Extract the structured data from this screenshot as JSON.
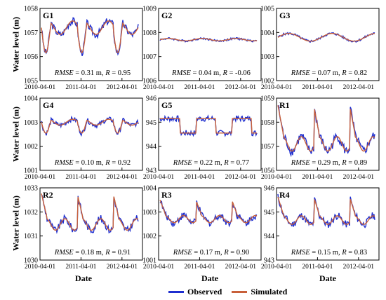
{
  "axis_titles": {
    "y": "Water level (m)",
    "x": "Date"
  },
  "colors": {
    "observed": "#1f2fcf",
    "simulated": "#c8603a",
    "deviation": "#ee4a4a"
  },
  "chart_data": {
    "type": "line",
    "x_tick_labels": [
      "2010-04-01",
      "2011-04-01",
      "2012-04-01"
    ],
    "x_range": [
      "2010-04-01",
      "2012-12-01"
    ],
    "legend": {
      "entries": [
        "Observed",
        "Simulated"
      ],
      "position": "bottom-center"
    },
    "panels": [
      {
        "id": "G1",
        "ylim": [
          1055,
          1058
        ],
        "yticks": [
          "1055",
          "1056",
          "1057",
          "1058"
        ],
        "metrics": {
          "rmse": "0.31 m",
          "r": "0.95"
        },
        "level_mean": 1057.2,
        "amplitude": 0.8,
        "pattern": "seasonal_drop",
        "noise": 0.15
      },
      {
        "id": "G2",
        "ylim": [
          1006,
          1009
        ],
        "yticks": [
          "1006",
          "1007",
          "1008",
          "1009"
        ],
        "metrics": {
          "rmse": "0.04 m",
          "r": "-0.06"
        },
        "level_mean": 1007.7,
        "amplitude": 0.05,
        "pattern": "flat",
        "noise": 0.04
      },
      {
        "id": "G3",
        "ylim": [
          1002,
          1005
        ],
        "yticks": [
          "1002",
          "1003",
          "1004",
          "1005"
        ],
        "metrics": {
          "rmse": "0.07 m",
          "r": "0.82"
        },
        "level_mean": 1003.8,
        "amplitude": 0.2,
        "pattern": "smooth",
        "noise": 0.05
      },
      {
        "id": "G4",
        "ylim": [
          1001,
          1004
        ],
        "yticks": [
          "1001",
          "1002",
          "1003",
          "1004"
        ],
        "metrics": {
          "rmse": "0.10 m",
          "r": "0.92"
        },
        "level_mean": 1003.0,
        "amplitude": 0.35,
        "pattern": "seasonal_drop",
        "noise": 0.1
      },
      {
        "id": "G5",
        "ylim": [
          943,
          946
        ],
        "yticks": [
          "943",
          "944",
          "945",
          "946"
        ],
        "metrics": {
          "rmse": "0.22 m",
          "r": "0.77"
        },
        "level_mean": 944.9,
        "amplitude": 0.3,
        "pattern": "step",
        "noise": 0.12
      },
      {
        "id": "R1",
        "ylim": [
          1056,
          1059
        ],
        "yticks": [
          "1056",
          "1057",
          "1058",
          "1059"
        ],
        "metrics": {
          "rmse": "0.29 m",
          "r": "0.89"
        },
        "level_mean": 1057.5,
        "amplitude": 1.0,
        "pattern": "sawtooth",
        "noise": 0.2
      },
      {
        "id": "R2",
        "ylim": [
          1030,
          1033
        ],
        "yticks": [
          "1030",
          "1031",
          "1032",
          "1033"
        ],
        "metrics": {
          "rmse": "0.18 m",
          "r": "0.91"
        },
        "level_mean": 1031.8,
        "amplitude": 0.8,
        "pattern": "sawtooth",
        "noise": 0.15
      },
      {
        "id": "R3",
        "ylim": [
          1001,
          1004
        ],
        "yticks": [
          "1001",
          "1002",
          "1003",
          "1004"
        ],
        "metrics": {
          "rmse": "0.17 m",
          "r": "0.90"
        },
        "level_mean": 1002.9,
        "amplitude": 0.5,
        "pattern": "sawtooth",
        "noise": 0.15
      },
      {
        "id": "R4",
        "ylim": [
          943,
          946
        ],
        "yticks": [
          "943",
          "944",
          "945",
          "946"
        ],
        "metrics": {
          "rmse": "0.15 m",
          "r": "0.83"
        },
        "level_mean": 944.9,
        "amplitude": 0.6,
        "pattern": "sawtooth",
        "noise": 0.15
      }
    ]
  }
}
